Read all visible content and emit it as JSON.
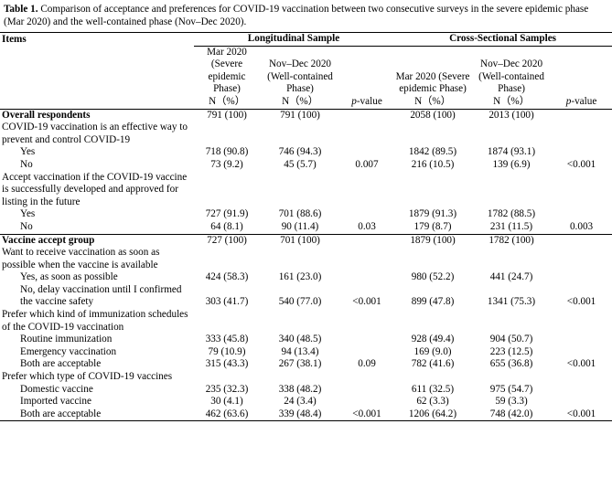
{
  "caption": {
    "label": "Table 1.",
    "text": "Comparison of acceptance and preferences for COVID-19 vaccination between two consecutive surveys in the severe epidemic phase (Mar 2020) and the well-contained phase (Nov–Dec 2020)."
  },
  "table": {
    "header": {
      "items": "Items",
      "groups": [
        "Longitudinal Sample",
        "Cross-Sectional Samples"
      ],
      "phases": [
        "Mar 2020 (Severe epidemic Phase)",
        "Nov–Dec 2020 (Well-contained Phase)",
        null,
        "Mar 2020 (Severe epidemic Phase)",
        "Nov–Dec 2020 (Well-contained Phase)",
        null
      ],
      "units": [
        "N（%）",
        "N（%）",
        {
          "italic": "p",
          "rest": "-value"
        },
        "N（%）",
        "N（%）",
        {
          "italic": "p",
          "rest": "-value"
        }
      ]
    },
    "rows": [
      {
        "label": "Overall respondents",
        "bold": true,
        "indent": false,
        "cells": [
          "791 (100)",
          "791 (100)",
          null,
          "2058 (100)",
          "2013 (100)",
          null
        ]
      },
      {
        "label": "COVID-19 vaccination is an effective way to prevent and control COVID-19",
        "bold": false,
        "indent": false,
        "cells": null
      },
      {
        "label": "Yes",
        "bold": false,
        "indent": true,
        "cells": [
          "718 (90.8)",
          "746 (94.3)",
          null,
          "1842 (89.5)",
          "1874 (93.1)",
          null
        ]
      },
      {
        "label": "No",
        "bold": false,
        "indent": true,
        "cells": [
          "73 (9.2)",
          "45 (5.7)",
          "0.007",
          "216 (10.5)",
          "139 (6.9)",
          "<0.001"
        ]
      },
      {
        "label": "Accept vaccination if the COVID-19 vaccine is successfully developed and approved for listing in the future",
        "bold": false,
        "indent": false,
        "cells": null
      },
      {
        "label": "Yes",
        "bold": false,
        "indent": true,
        "cells": [
          "727 (91.9)",
          "701 (88.6)",
          null,
          "1879 (91.3)",
          "1782 (88.5)",
          null
        ]
      },
      {
        "label": "No",
        "bold": false,
        "indent": true,
        "cells": [
          "64 (8.1)",
          "90 (11.4)",
          "0.03",
          "179 (8.7)",
          "231 (11.5)",
          "0.003"
        ],
        "rule": true
      },
      {
        "label": "Vaccine accept group",
        "bold": true,
        "indent": false,
        "cells": [
          "727 (100)",
          "701 (100)",
          null,
          "1879 (100)",
          "1782 (100)",
          null
        ]
      },
      {
        "label": "Want to receive vaccination as soon as possible when the vaccine is available",
        "bold": false,
        "indent": false,
        "cells": null
      },
      {
        "label": "Yes, as soon as possible",
        "bold": false,
        "indent": true,
        "cells": [
          "424 (58.3)",
          "161 (23.0)",
          null,
          "980 (52.2)",
          "441 (24.7)",
          null
        ]
      },
      {
        "label": "No, delay vaccination until I confirmed the vaccine safety",
        "bold": false,
        "indent": true,
        "cells": [
          "303 (41.7)",
          "540 (77.0)",
          "<0.001",
          "899 (47.8)",
          "1341 (75.3)",
          "<0.001"
        ]
      },
      {
        "label": "Prefer which kind of immunization schedules of the COVID-19 vaccination",
        "bold": false,
        "indent": false,
        "cells": null
      },
      {
        "label": "Routine immunization",
        "bold": false,
        "indent": true,
        "cells": [
          "333 (45.8)",
          "340 (48.5)",
          null,
          "928 (49.4)",
          "904 (50.7)",
          null
        ]
      },
      {
        "label": "Emergency vaccination",
        "bold": false,
        "indent": true,
        "cells": [
          "79 (10.9)",
          "94 (13.4)",
          null,
          "169 (9.0)",
          "223 (12.5)",
          null
        ]
      },
      {
        "label": "Both are acceptable",
        "bold": false,
        "indent": true,
        "cells": [
          "315 (43.3)",
          "267 (38.1)",
          "0.09",
          "782 (41.6)",
          "655 (36.8)",
          "<0.001"
        ]
      },
      {
        "label": "Prefer which type of COVID-19 vaccines",
        "bold": false,
        "indent": false,
        "cells": null
      },
      {
        "label": "Domestic vaccine",
        "bold": false,
        "indent": true,
        "cells": [
          "235 (32.3)",
          "338 (48.2)",
          null,
          "611 (32.5)",
          "975 (54.7)",
          null
        ]
      },
      {
        "label": "Imported vaccine",
        "bold": false,
        "indent": true,
        "cells": [
          "30 (4.1)",
          "24 (3.4)",
          null,
          "62 (3.3)",
          "59 (3.3)",
          null
        ]
      },
      {
        "label": "Both are acceptable",
        "bold": false,
        "indent": true,
        "cells": [
          "462 (63.6)",
          "339 (48.4)",
          "<0.001",
          "1206 (64.2)",
          "748 (42.0)",
          "<0.001"
        ]
      }
    ]
  }
}
